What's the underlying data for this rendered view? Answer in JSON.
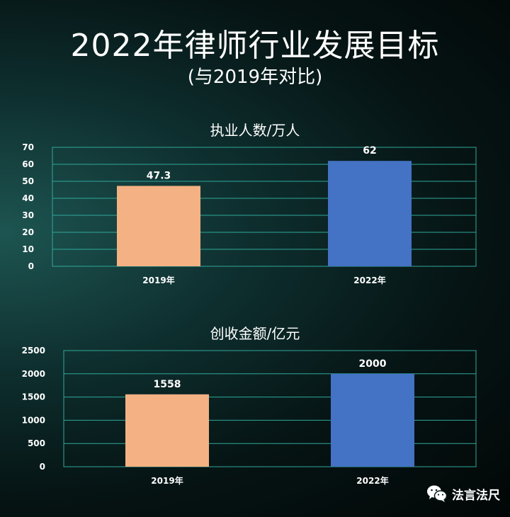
{
  "title": "2022年律师行业发展目标",
  "subtitle": "(与2019年对比)",
  "watermark": "法言法尺",
  "colors": {
    "bar_2019": "#f4b183",
    "bar_2022": "#4472c4",
    "grid": "#2fa89a"
  },
  "chart_data": [
    {
      "type": "bar",
      "title": "执业人数/万人",
      "categories": [
        "2019年",
        "2022年"
      ],
      "values": [
        47.3,
        62
      ],
      "data_labels": [
        "47.3",
        "62"
      ],
      "ylim": [
        0,
        70
      ],
      "yticks": [
        0,
        10,
        20,
        30,
        40,
        50,
        60,
        70
      ],
      "grid": true,
      "legend": "none"
    },
    {
      "type": "bar",
      "title": "创收金额/亿元",
      "categories": [
        "2019年",
        "2022年"
      ],
      "values": [
        1558,
        2000
      ],
      "data_labels": [
        "1558",
        "2000"
      ],
      "ylim": [
        0,
        2500
      ],
      "yticks": [
        0,
        500,
        1000,
        1500,
        2000,
        2500
      ],
      "grid": true,
      "legend": "none"
    }
  ]
}
